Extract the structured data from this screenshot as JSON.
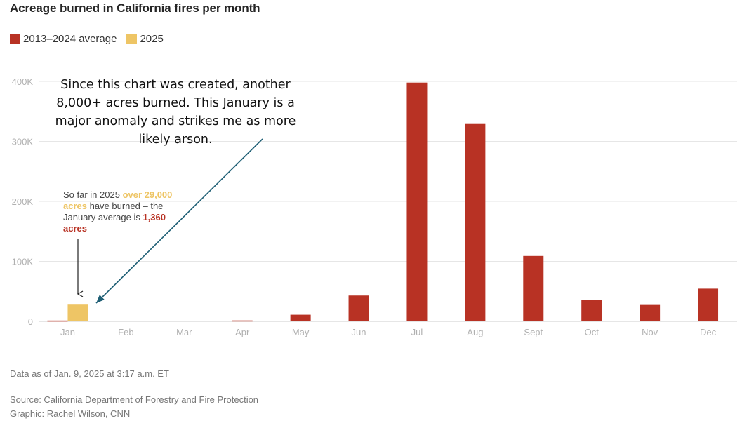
{
  "chart_data": {
    "type": "bar",
    "title": "Acreage burned in California fires per month",
    "categories": [
      "Jan",
      "Feb",
      "Mar",
      "Apr",
      "May",
      "Jun",
      "Jul",
      "Aug",
      "Sept",
      "Oct",
      "Nov",
      "Dec"
    ],
    "series": [
      {
        "name": "2013–2024 average",
        "color": "#b83224",
        "values": [
          1360,
          0,
          0,
          1500,
          11000,
          43000,
          398000,
          329000,
          109000,
          35500,
          28500,
          54500
        ]
      },
      {
        "name": "2025",
        "color": "#eec565",
        "values": [
          29000,
          null,
          null,
          null,
          null,
          null,
          null,
          null,
          null,
          null,
          null,
          null
        ]
      }
    ],
    "ylim": [
      0,
      400000
    ],
    "yticks": [
      0,
      100000,
      200000,
      300000,
      400000
    ],
    "ytick_labels": [
      "0",
      "100K",
      "200K",
      "300K",
      "400K"
    ],
    "grid": true,
    "legend_position": "top-left",
    "annotation": {
      "p1": "So far in 2025 ",
      "h1": "over 29,000 acres",
      "p2": " have burned – the January average is ",
      "h2": "1,360 acres"
    }
  },
  "callout": {
    "text": "Since this chart was created, another 8,000+ acres burned.  This January is a major anomaly and strikes me as more likely arson."
  },
  "footer": {
    "date": "Data as of Jan. 9, 2025 at 3:17 a.m. ET",
    "source": "Source: California Department of Forestry and Fire Protection",
    "graphic": "Graphic: Rachel Wilson, CNN"
  }
}
